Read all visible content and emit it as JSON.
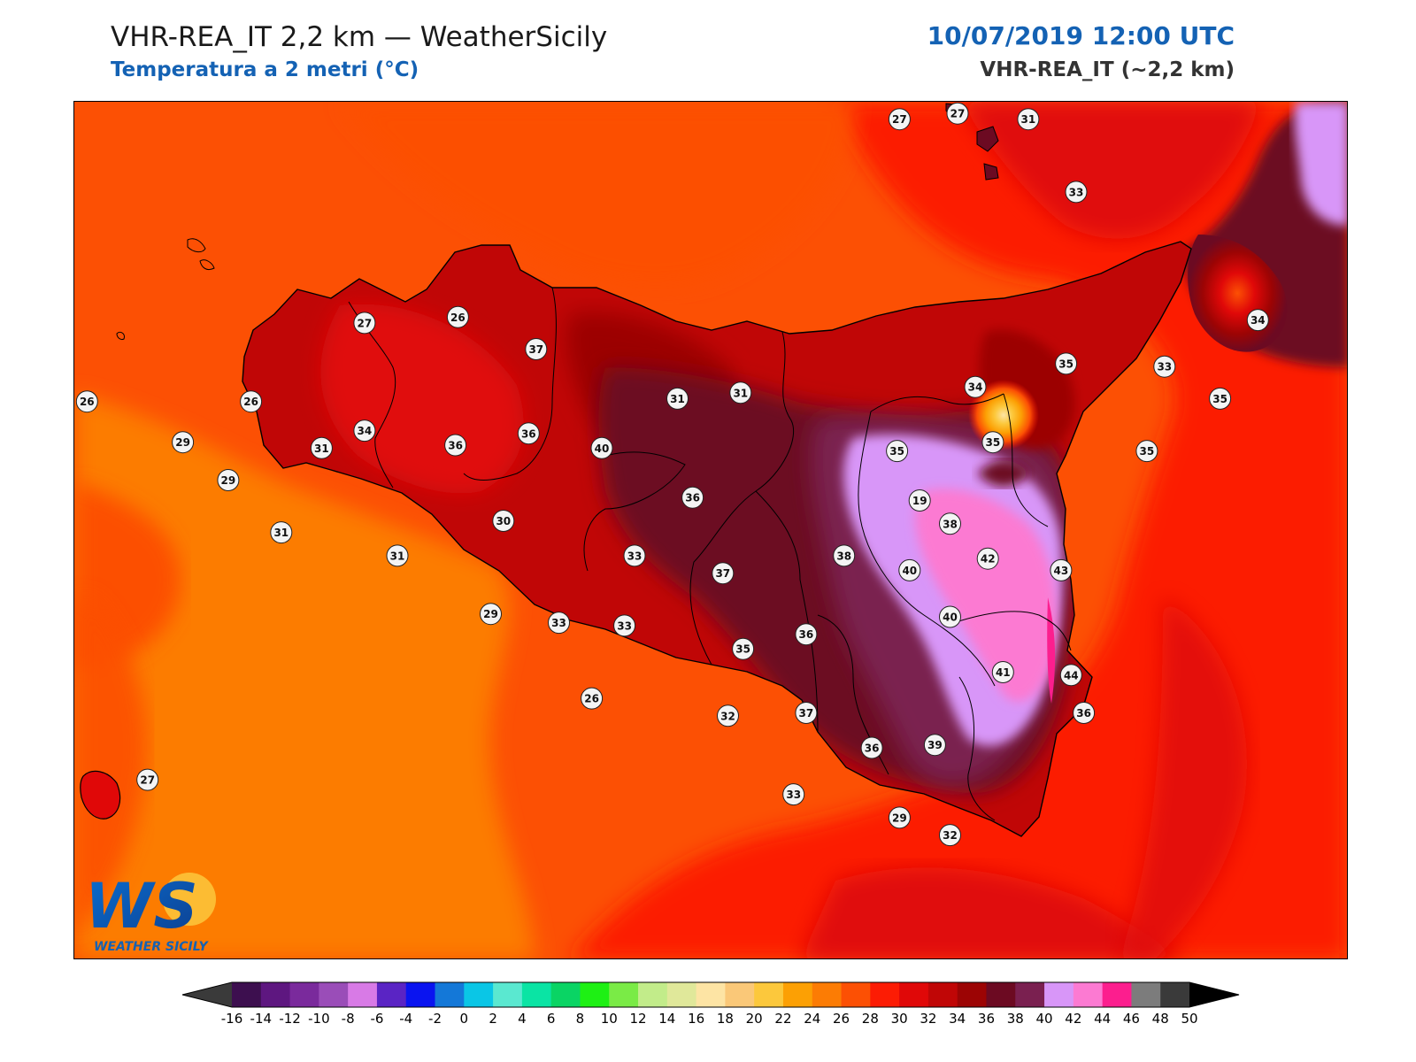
{
  "header": {
    "title": "VHR-REA_IT 2,2 km — WeatherSicily",
    "subtitle": "Temperatura a 2 metri (°C)",
    "datetime": "10/07/2019 12:00 UTC",
    "model": "VHR-REA_IT (~2,2 km)"
  },
  "logo": {
    "letters": "WS",
    "text": "WEATHER SICILY"
  },
  "colorbar": {
    "under_color": "#3a3a3a",
    "over_color": "#000000",
    "bins": [
      {
        "label": "-16",
        "color": "#3d0f4f"
      },
      {
        "label": "-14",
        "color": "#5e1780"
      },
      {
        "label": "-12",
        "color": "#7a2a9c"
      },
      {
        "label": "-10",
        "color": "#9a4db8"
      },
      {
        "label": "-8",
        "color": "#d87ae6"
      },
      {
        "label": "-6",
        "color": "#5a24c4"
      },
      {
        "label": "-4",
        "color": "#0a14f0"
      },
      {
        "label": "-2",
        "color": "#1478d8"
      },
      {
        "label": "0",
        "color": "#0ac6e6"
      },
      {
        "label": "2",
        "color": "#5ae8d0"
      },
      {
        "label": "4",
        "color": "#0ae4a4"
      },
      {
        "label": "6",
        "color": "#0ad464"
      },
      {
        "label": "8",
        "color": "#1ef014"
      },
      {
        "label": "10",
        "color": "#7aeb46"
      },
      {
        "label": "12",
        "color": "#c2ec8a"
      },
      {
        "label": "14",
        "color": "#e0e89a"
      },
      {
        "label": "16",
        "color": "#fde4a4"
      },
      {
        "label": "18",
        "color": "#fac878"
      },
      {
        "label": "20",
        "color": "#fcc83c"
      },
      {
        "label": "22",
        "color": "#fca004"
      },
      {
        "label": "24",
        "color": "#fc7c04"
      },
      {
        "label": "26",
        "color": "#fc5004"
      },
      {
        "label": "28",
        "color": "#fc1c04"
      },
      {
        "label": "30",
        "color": "#e00808"
      },
      {
        "label": "32",
        "color": "#c00606"
      },
      {
        "label": "34",
        "color": "#9c0404"
      },
      {
        "label": "36",
        "color": "#6c0a22"
      },
      {
        "label": "38",
        "color": "#7a2050"
      },
      {
        "label": "40",
        "color": "#d896f8"
      },
      {
        "label": "42",
        "color": "#fc7ad2"
      },
      {
        "label": "44",
        "color": "#fc1e8e"
      },
      {
        "label": "46",
        "color": "#7c7c7c"
      },
      {
        "label": "48",
        "color": "#3a3a3a"
      }
    ],
    "last_label": "50"
  },
  "stations": [
    {
      "value": "27",
      "lon": 14.92,
      "lat": 39.06
    },
    {
      "value": "27",
      "lon": 15.15,
      "lat": 39.08
    },
    {
      "value": "31",
      "lon": 15.43,
      "lat": 39.06
    },
    {
      "value": "33",
      "lon": 15.62,
      "lat": 38.81
    },
    {
      "value": "26",
      "lon": 13.17,
      "lat": 38.38
    },
    {
      "value": "27",
      "lon": 12.8,
      "lat": 38.36
    },
    {
      "value": "37",
      "lon": 13.48,
      "lat": 38.27
    },
    {
      "value": "34",
      "lon": 15.22,
      "lat": 38.14
    },
    {
      "value": "35",
      "lon": 15.58,
      "lat": 38.22
    },
    {
      "value": "33",
      "lon": 15.97,
      "lat": 38.21
    },
    {
      "value": "34",
      "lon": 16.34,
      "lat": 38.37
    },
    {
      "value": "35",
      "lon": 16.19,
      "lat": 38.1
    },
    {
      "value": "26",
      "lon": 12.35,
      "lat": 38.09
    },
    {
      "value": "26",
      "lon": 11.7,
      "lat": 38.09
    },
    {
      "value": "29",
      "lon": 12.08,
      "lat": 37.95
    },
    {
      "value": "34",
      "lon": 12.8,
      "lat": 37.99
    },
    {
      "value": "31",
      "lon": 14.04,
      "lat": 38.1
    },
    {
      "value": "31",
      "lon": 14.29,
      "lat": 38.12
    },
    {
      "value": "36",
      "lon": 13.45,
      "lat": 37.98
    },
    {
      "value": "36",
      "lon": 13.16,
      "lat": 37.94
    },
    {
      "value": "31",
      "lon": 12.63,
      "lat": 37.93
    },
    {
      "value": "40",
      "lon": 13.74,
      "lat": 37.93
    },
    {
      "value": "35",
      "lon": 14.91,
      "lat": 37.92
    },
    {
      "value": "35",
      "lon": 15.29,
      "lat": 37.95
    },
    {
      "value": "19",
      "lon": 15.0,
      "lat": 37.75
    },
    {
      "value": "35",
      "lon": 15.9,
      "lat": 37.92
    },
    {
      "value": "29",
      "lon": 12.26,
      "lat": 37.82
    },
    {
      "value": "36",
      "lon": 14.1,
      "lat": 37.76
    },
    {
      "value": "38",
      "lon": 15.12,
      "lat": 37.67
    },
    {
      "value": "31",
      "lon": 12.47,
      "lat": 37.64
    },
    {
      "value": "30",
      "lon": 13.35,
      "lat": 37.68
    },
    {
      "value": "31",
      "lon": 12.93,
      "lat": 37.56
    },
    {
      "value": "33",
      "lon": 13.87,
      "lat": 37.56
    },
    {
      "value": "38",
      "lon": 14.7,
      "lat": 37.56
    },
    {
      "value": "42",
      "lon": 15.27,
      "lat": 37.55
    },
    {
      "value": "37",
      "lon": 14.22,
      "lat": 37.5
    },
    {
      "value": "40",
      "lon": 14.96,
      "lat": 37.51
    },
    {
      "value": "43",
      "lon": 15.56,
      "lat": 37.51
    },
    {
      "value": "29",
      "lon": 13.3,
      "lat": 37.36
    },
    {
      "value": "40",
      "lon": 15.12,
      "lat": 37.35
    },
    {
      "value": "33",
      "lon": 13.57,
      "lat": 37.33
    },
    {
      "value": "33",
      "lon": 13.83,
      "lat": 37.32
    },
    {
      "value": "36",
      "lon": 14.55,
      "lat": 37.29
    },
    {
      "value": "35",
      "lon": 14.3,
      "lat": 37.24
    },
    {
      "value": "41",
      "lon": 15.33,
      "lat": 37.16
    },
    {
      "value": "44",
      "lon": 15.6,
      "lat": 37.15
    },
    {
      "value": "26",
      "lon": 13.7,
      "lat": 37.07
    },
    {
      "value": "32",
      "lon": 14.24,
      "lat": 37.01
    },
    {
      "value": "37",
      "lon": 14.55,
      "lat": 37.02
    },
    {
      "value": "36",
      "lon": 15.65,
      "lat": 37.02
    },
    {
      "value": "36",
      "lon": 14.81,
      "lat": 36.9
    },
    {
      "value": "39",
      "lon": 15.06,
      "lat": 36.91
    },
    {
      "value": "33",
      "lon": 14.5,
      "lat": 36.74
    },
    {
      "value": "27",
      "lon": 11.94,
      "lat": 36.79
    },
    {
      "value": "29",
      "lon": 14.92,
      "lat": 36.66
    },
    {
      "value": "32",
      "lon": 15.12,
      "lat": 36.6
    }
  ]
}
